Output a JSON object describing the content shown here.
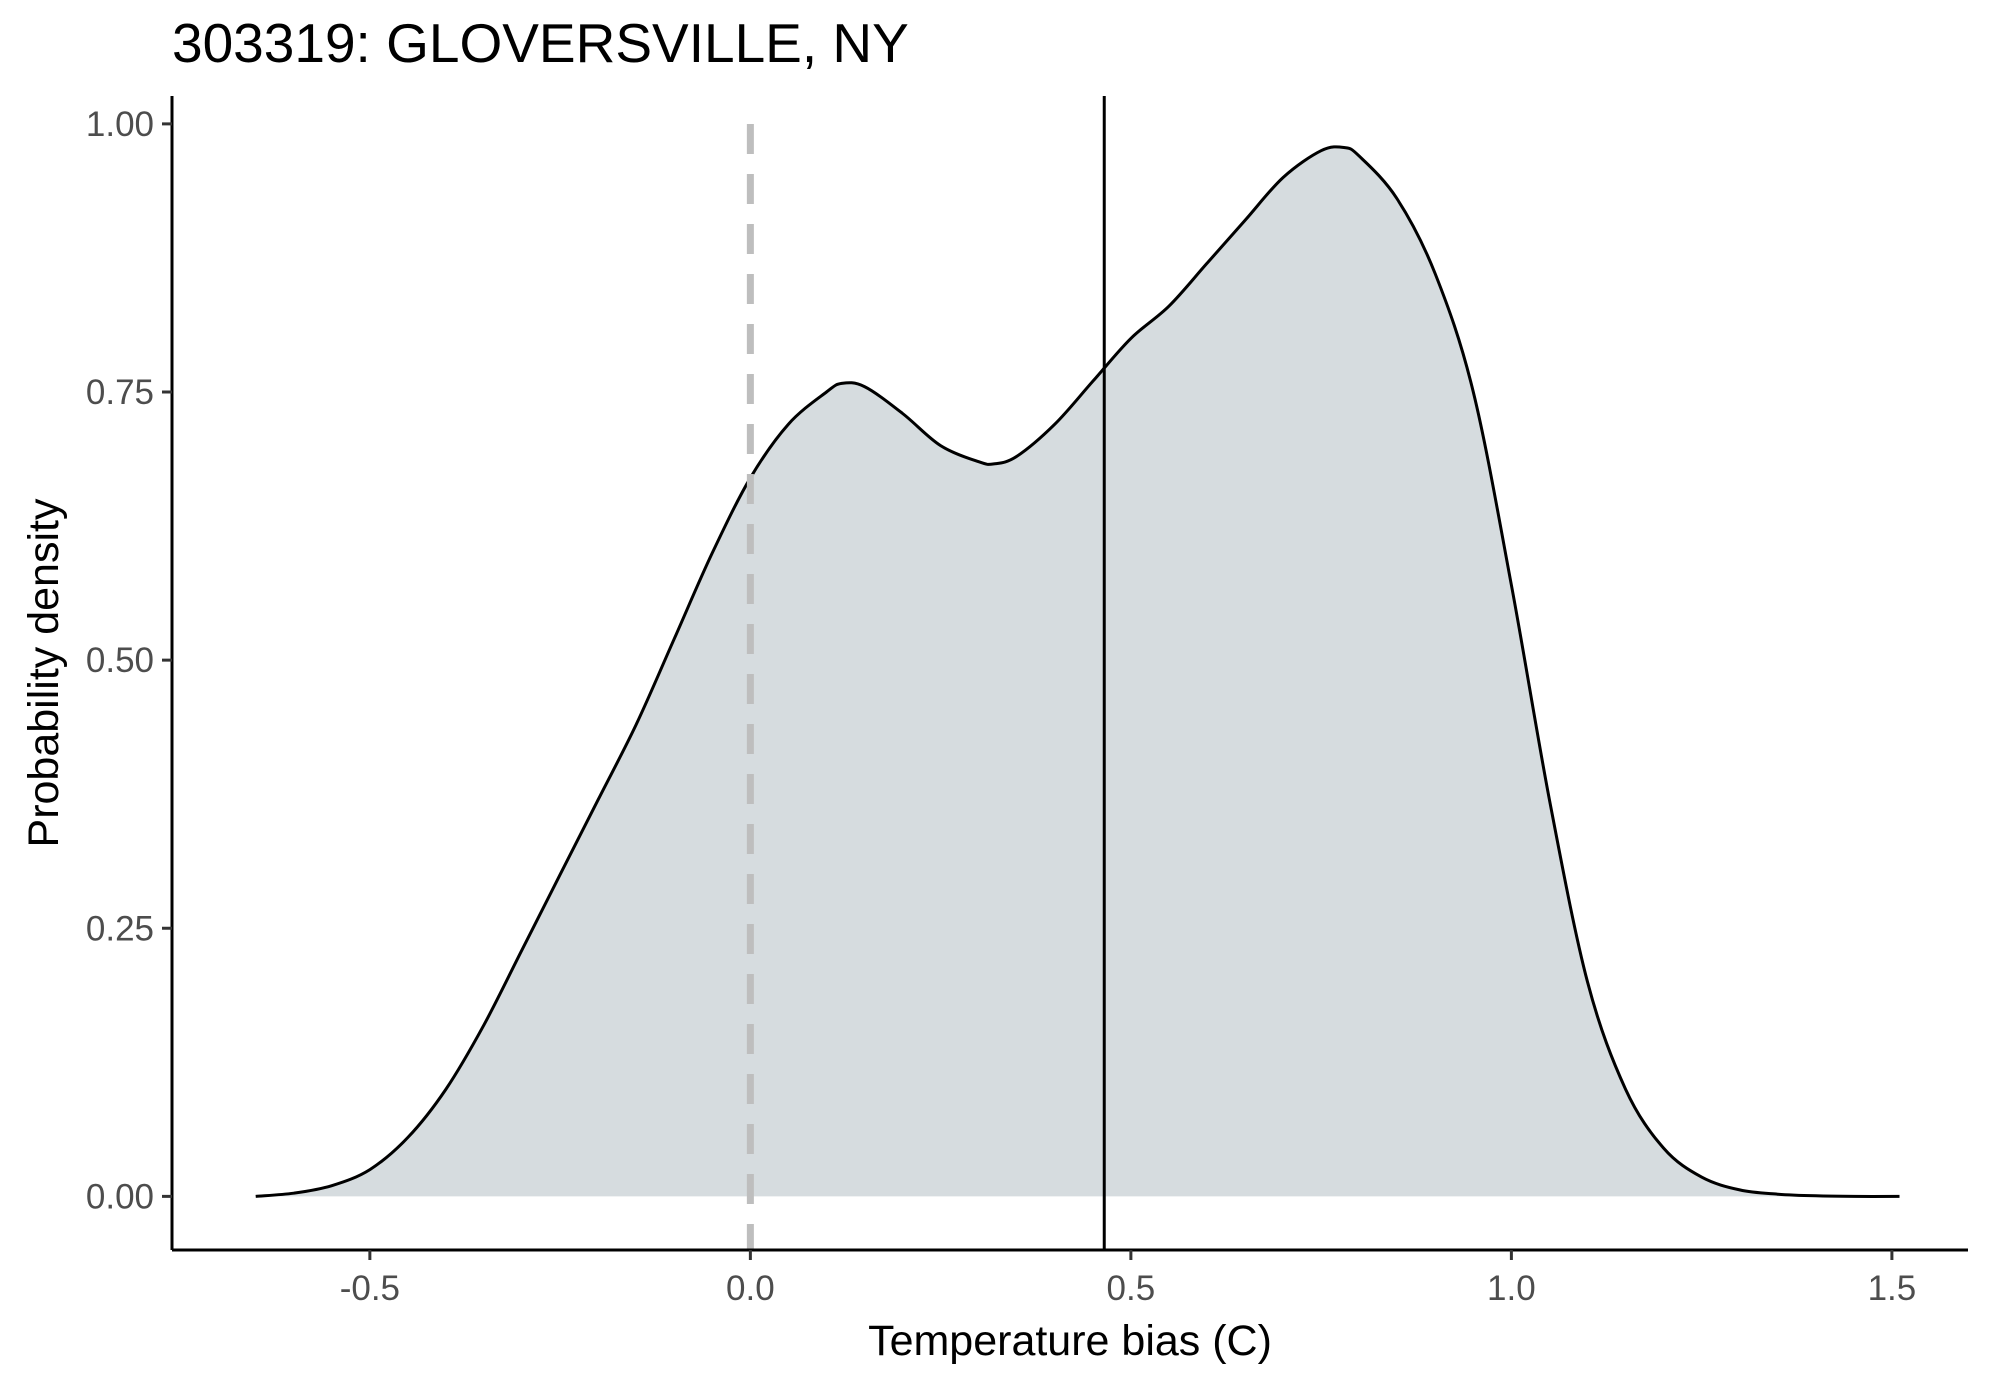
{
  "chart_data": {
    "type": "area",
    "title": "303319: GLOVERSVILLE, NY",
    "xlabel": "Temperature bias (C)",
    "ylabel": "Probability density",
    "xlim": [
      -0.76,
      1.6
    ],
    "ylim": [
      -0.05,
      1.026
    ],
    "x_ticks": [
      -0.5,
      0.0,
      0.5,
      1.0,
      1.5
    ],
    "x_tick_labels": [
      "-0.5",
      "0.0",
      "0.5",
      "1.0",
      "1.5"
    ],
    "y_ticks": [
      0.0,
      0.25,
      0.5,
      0.75,
      1.0
    ],
    "y_tick_labels": [
      "0.00",
      "0.25",
      "0.50",
      "0.75",
      "1.00"
    ],
    "grid": false,
    "legend": "none",
    "colors": {
      "fill": "#d6dcdf",
      "line": "#000000",
      "reference_line": "#bebebe",
      "mean_line": "#000000"
    },
    "series": [
      {
        "x": [
          -0.65,
          -0.6,
          -0.55,
          -0.5,
          -0.45,
          -0.4,
          -0.35,
          -0.3,
          -0.25,
          -0.2,
          -0.15,
          -0.1,
          -0.05,
          0.0,
          0.05,
          0.1,
          0.12,
          0.15,
          0.2,
          0.25,
          0.3,
          0.32,
          0.35,
          0.4,
          0.45,
          0.5,
          0.55,
          0.6,
          0.65,
          0.7,
          0.75,
          0.78,
          0.8,
          0.85,
          0.9,
          0.95,
          1.0,
          1.05,
          1.1,
          1.15,
          1.2,
          1.25,
          1.3,
          1.35,
          1.4,
          1.45,
          1.51
        ],
        "values": [
          0.0,
          0.003,
          0.01,
          0.025,
          0.055,
          0.1,
          0.16,
          0.23,
          0.3,
          0.37,
          0.44,
          0.52,
          0.6,
          0.67,
          0.72,
          0.75,
          0.758,
          0.755,
          0.73,
          0.7,
          0.685,
          0.683,
          0.69,
          0.72,
          0.76,
          0.8,
          0.83,
          0.87,
          0.91,
          0.95,
          0.975,
          0.978,
          0.97,
          0.93,
          0.86,
          0.75,
          0.57,
          0.37,
          0.2,
          0.1,
          0.045,
          0.018,
          0.006,
          0.002,
          0.0005,
          0.0,
          0.0
        ]
      }
    ],
    "reference_lines": [
      {
        "x": 0.0,
        "style": "dashed"
      },
      {
        "x": 0.465,
        "style": "solid"
      }
    ]
  }
}
